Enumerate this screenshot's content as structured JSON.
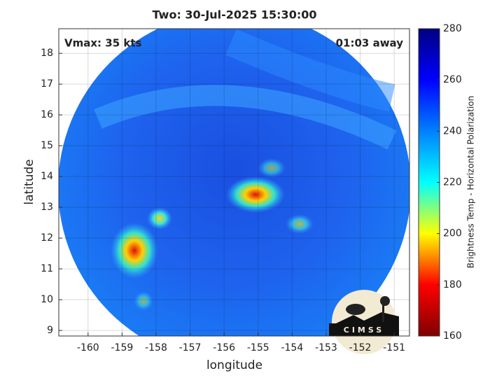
{
  "chart_data": {
    "type": "heatmap",
    "title": "Two: 30-Jul-2025 15:30:00",
    "annotations": [
      "Vmax: 35 kts",
      "01:03 away"
    ],
    "x_label": "longitude",
    "y_label": "latitude",
    "xlim": [
      -160.86,
      -150.55
    ],
    "ylim": [
      8.82,
      18.8
    ],
    "xticks": [
      -160,
      -159,
      -158,
      -157,
      -156,
      -155,
      -154,
      -153,
      -152,
      -151
    ],
    "yticks": [
      9,
      10,
      11,
      12,
      13,
      14,
      15,
      16,
      17,
      18
    ],
    "grid": true,
    "colorbar": {
      "label": "Brightness Temp - Horizontal Polarization",
      "lim": [
        160,
        280
      ],
      "ticks": [
        160,
        180,
        200,
        220,
        240,
        260,
        280
      ],
      "colormap": "jet"
    }
  },
  "logo": {
    "text": "CIMSS"
  }
}
